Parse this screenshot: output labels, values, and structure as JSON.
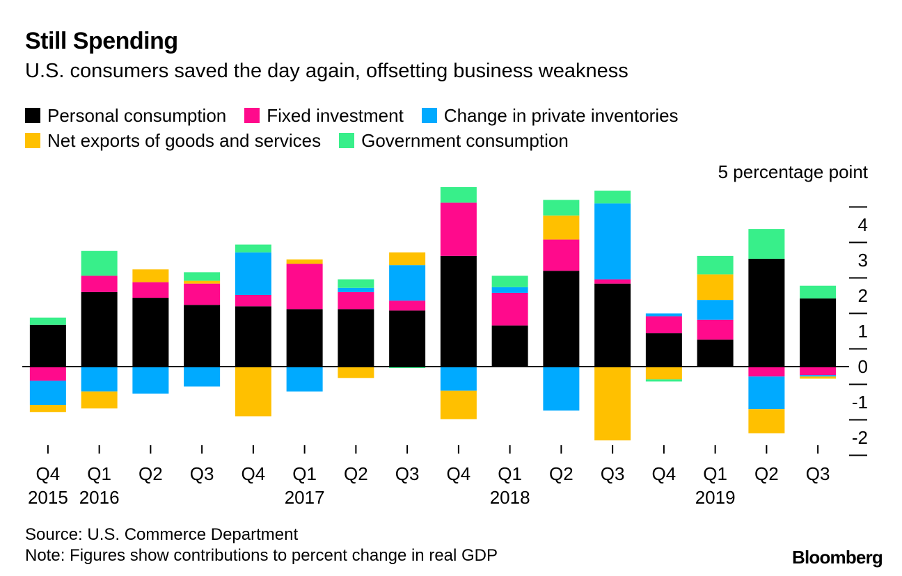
{
  "title": "Still Spending",
  "subtitle": "U.S. consumers saved the day again, offsetting business weakness",
  "source": "Source: U.S. Commerce Department",
  "note": "Note: Figures show contributions to percent change in real GDP",
  "brand": "Bloomberg",
  "chart_data": {
    "type": "bar",
    "stacked": true,
    "title": "Still Spending",
    "subtitle": "U.S. consumers saved the day again, offsetting business weakness",
    "ylabel": "5 percentage point",
    "ylim": [
      -2.0,
      5.0
    ],
    "yticks": [
      "4",
      "3",
      "2",
      "1",
      "0",
      "-1",
      "-2"
    ],
    "ytick_values": [
      4,
      3,
      2,
      1,
      0,
      -1,
      -2
    ],
    "legend_position": "top",
    "categories": [
      "Q4",
      "Q1",
      "Q2",
      "Q3",
      "Q4",
      "Q1",
      "Q2",
      "Q3",
      "Q4",
      "Q1",
      "Q2",
      "Q3",
      "Q4",
      "Q1",
      "Q2",
      "Q3"
    ],
    "year_labels": [
      "2015",
      "2016",
      "",
      "",
      "",
      "2017",
      "",
      "",
      "",
      "2018",
      "",
      "",
      "",
      "2019",
      "",
      ""
    ],
    "series": [
      {
        "name": "Personal consumption",
        "color": "#000000",
        "values": [
          1.18,
          2.1,
          1.94,
          1.74,
          1.7,
          1.62,
          1.62,
          1.58,
          3.12,
          1.16,
          2.7,
          2.34,
          0.94,
          0.76,
          3.04,
          1.92
        ]
      },
      {
        "name": "Fixed investment",
        "color": "#ff0a8c",
        "values": [
          -0.4,
          0.46,
          0.44,
          0.6,
          0.32,
          1.28,
          0.48,
          0.28,
          1.5,
          0.92,
          0.88,
          0.12,
          0.48,
          0.56,
          -0.28,
          -0.24
        ]
      },
      {
        "name": "Change in private inventories",
        "color": "#00aaff",
        "values": [
          -0.68,
          -0.7,
          -0.76,
          -0.56,
          1.2,
          -0.7,
          0.12,
          1.0,
          -0.68,
          0.16,
          -1.24,
          2.14,
          0.08,
          0.56,
          -0.92,
          -0.04
        ]
      },
      {
        "name": "Net exports of goods and services",
        "color": "#ffc000",
        "values": [
          -0.2,
          -0.48,
          0.36,
          0.08,
          -1.4,
          0.12,
          -0.32,
          0.36,
          -0.8,
          0.0,
          0.68,
          -2.08,
          -0.36,
          0.72,
          -0.68,
          -0.06
        ]
      },
      {
        "name": "Government consumption",
        "color": "#38ef8a",
        "values": [
          0.2,
          0.7,
          0.0,
          0.24,
          0.22,
          0.0,
          0.24,
          -0.04,
          0.44,
          0.32,
          0.44,
          0.36,
          -0.06,
          0.52,
          0.84,
          0.36
        ]
      }
    ]
  }
}
